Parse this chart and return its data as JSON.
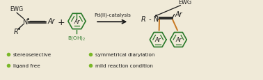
{
  "background_color": "#f0ead8",
  "dark_color": "#1a1a1a",
  "green_dark": "#2a7a2a",
  "green_light": "#7ab828",
  "orange_color": "#c87820",
  "bullet_left": [
    "stereoselective",
    "ligand free"
  ],
  "bullet_right": [
    "symmetrical diarylation",
    "mild reaction condition"
  ],
  "reaction_label": "Pd(II)-catalysis",
  "figsize": [
    3.78,
    1.16
  ],
  "dpi": 100
}
